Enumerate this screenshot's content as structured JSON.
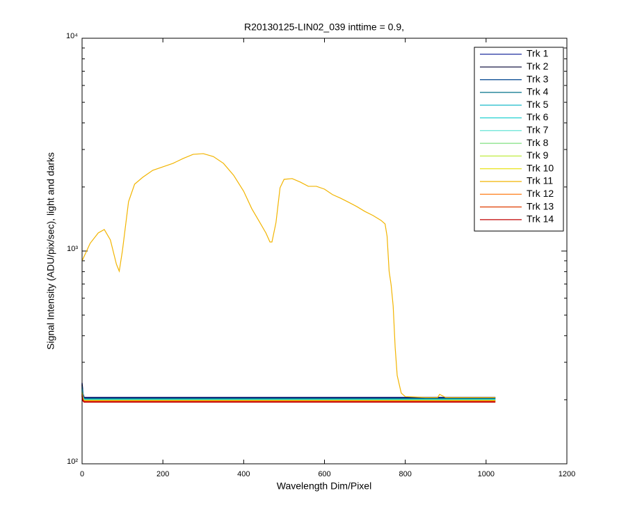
{
  "chart_data": {
    "type": "line",
    "title": "R20130125-LIN02_039 inttime = 0.9,",
    "xlabel": "Wavelength Dim/Pixel",
    "ylabel": "Signal Intensity (ADU/pix/sec), light and darks",
    "xlim": [
      0,
      1200
    ],
    "xticks": [
      0,
      200,
      400,
      600,
      800,
      1000,
      1200
    ],
    "ylim": [
      100,
      10000
    ],
    "yscale": "log",
    "yticks": [
      {
        "value": 100,
        "label": "10²"
      },
      {
        "value": 1000,
        "label": "10³"
      },
      {
        "value": 10000,
        "label": "10⁴"
      }
    ],
    "yminor_ticks": [
      200,
      300,
      400,
      500,
      600,
      700,
      800,
      900,
      2000,
      3000,
      4000,
      5000,
      6000,
      7000,
      8000,
      9000
    ],
    "legend": "upper right",
    "series": [
      {
        "name": "Trk 1",
        "color": "#1c2a9e",
        "x": [
          0,
          2,
          5,
          1023
        ],
        "values": [
          240,
          214,
          205,
          205
        ]
      },
      {
        "name": "Trk 2",
        "color": "#000033",
        "x": [
          0,
          2,
          5,
          1023
        ],
        "values": [
          236,
          212,
          204,
          204
        ]
      },
      {
        "name": "Trk 3",
        "color": "#00448f",
        "x": [
          0,
          2,
          5,
          1023
        ],
        "values": [
          232,
          210,
          203,
          203
        ]
      },
      {
        "name": "Trk 4",
        "color": "#00708a",
        "x": [
          0,
          2,
          5,
          1023
        ],
        "values": [
          228,
          208,
          202,
          202
        ]
      },
      {
        "name": "Trk 5",
        "color": "#00b4c4",
        "x": [
          0,
          2,
          5,
          1023
        ],
        "values": [
          225,
          207,
          201,
          201
        ]
      },
      {
        "name": "Trk 6",
        "color": "#20d0d0",
        "x": [
          0,
          2,
          5,
          1023
        ],
        "values": [
          222,
          206,
          200,
          200
        ]
      },
      {
        "name": "Trk 7",
        "color": "#50e0d0",
        "x": [
          0,
          2,
          5,
          1023
        ],
        "values": [
          220,
          205,
          199,
          199
        ]
      },
      {
        "name": "Trk 8",
        "color": "#80e080",
        "x": [
          0,
          2,
          5,
          1023
        ],
        "values": [
          218,
          204,
          199,
          199
        ]
      },
      {
        "name": "Trk 9",
        "color": "#c0ec40",
        "x": [
          0,
          2,
          5,
          1023
        ],
        "values": [
          216,
          203,
          198,
          198
        ]
      },
      {
        "name": "Trk 10",
        "color": "#e6e000",
        "x": [
          0,
          2,
          5,
          1023
        ],
        "values": [
          214,
          202,
          198,
          198
        ]
      },
      {
        "name": "Trk 11",
        "color": "#f2b400",
        "x": [
          0,
          20,
          40,
          55,
          70,
          85,
          92,
          100,
          115,
          130,
          150,
          175,
          200,
          225,
          250,
          275,
          300,
          325,
          350,
          375,
          400,
          420,
          440,
          455,
          465,
          470,
          480,
          490,
          500,
          520,
          540,
          560,
          580,
          600,
          620,
          640,
          660,
          680,
          700,
          720,
          740,
          750,
          755,
          760,
          765,
          770,
          775,
          780,
          790,
          800,
          850,
          880,
          885,
          900,
          950,
          1000,
          1023
        ],
        "values": [
          900,
          1087,
          1216,
          1262,
          1128,
          867,
          804,
          1007,
          1706,
          2061,
          2220,
          2396,
          2486,
          2582,
          2722,
          2847,
          2869,
          2780,
          2582,
          2272,
          1910,
          1582,
          1362,
          1216,
          1103,
          1103,
          1362,
          1983,
          2173,
          2190,
          2109,
          2014,
          2014,
          1954,
          1841,
          1771,
          1694,
          1618,
          1535,
          1469,
          1393,
          1340,
          1172,
          804,
          692,
          552,
          351,
          260,
          215,
          207,
          205,
          205,
          212,
          205,
          205,
          205,
          205
        ]
      },
      {
        "name": "Trk 12",
        "color": "#ff7000",
        "x": [
          0,
          2,
          5,
          1023
        ],
        "values": [
          212,
          200,
          197,
          197
        ]
      },
      {
        "name": "Trk 13",
        "color": "#e03c00",
        "x": [
          0,
          2,
          5,
          1023
        ],
        "values": [
          210,
          199,
          196,
          196
        ]
      },
      {
        "name": "Trk 14",
        "color": "#c00000",
        "x": [
          0,
          2,
          5,
          1023
        ],
        "values": [
          208,
          198,
          195,
          195
        ]
      }
    ]
  }
}
